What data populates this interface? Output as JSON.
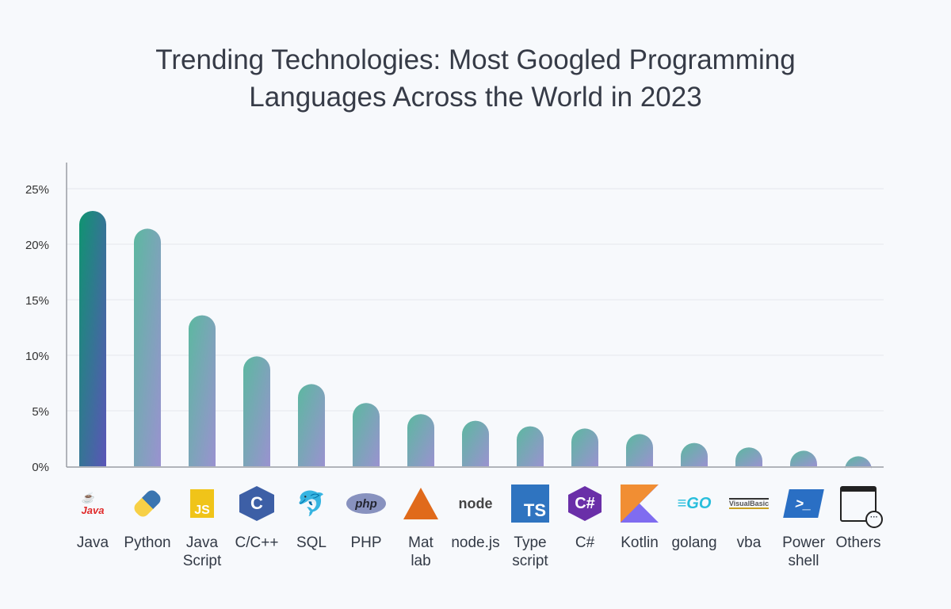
{
  "title_line1": "Trending Technologies: Most Googled Programming",
  "title_line2": "Languages Across the World in 2023",
  "chart_data": {
    "type": "bar",
    "title": "Trending Technologies: Most Googled Programming Languages Across the World in 2023",
    "categories": [
      "Java",
      "Python",
      "Java Script",
      "C/C++",
      "SQL",
      "PHP",
      "Mat lab",
      "node.js",
      "Type script",
      "C#",
      "Kotlin",
      "golang",
      "vba",
      "Power shell",
      "Others"
    ],
    "label_lines": [
      [
        "Java"
      ],
      [
        "Python"
      ],
      [
        "Java",
        "Script"
      ],
      [
        "C/C++"
      ],
      [
        "SQL"
      ],
      [
        "PHP"
      ],
      [
        "Mat",
        "lab"
      ],
      [
        "node.js"
      ],
      [
        "Type",
        "script"
      ],
      [
        "C#"
      ],
      [
        "Kotlin"
      ],
      [
        "golang"
      ],
      [
        "vba"
      ],
      [
        "Power",
        "shell"
      ],
      [
        "Others"
      ]
    ],
    "icons": [
      "java-icon",
      "python-icon",
      "javascript-icon",
      "cpp-icon",
      "mysql-icon",
      "php-icon",
      "matlab-icon",
      "nodejs-icon",
      "typescript-icon",
      "csharp-icon",
      "kotlin-icon",
      "golang-icon",
      "vba-icon",
      "powershell-icon",
      "others-window-icon"
    ],
    "values": [
      23.0,
      21.4,
      13.6,
      9.9,
      7.4,
      5.7,
      4.7,
      4.1,
      3.6,
      3.4,
      2.9,
      2.1,
      1.7,
      1.4,
      0.9
    ],
    "ylim": [
      0,
      25
    ],
    "yticks": [
      "0%",
      "5%",
      "10%",
      "15%",
      "20%",
      "25%"
    ],
    "grid": true,
    "colors": {
      "highlight_top": "#0f9470",
      "highlight_bottom": "#5b55b8",
      "bar_top": "#5cb8a0",
      "bar_bottom": "#9a92d0"
    }
  }
}
